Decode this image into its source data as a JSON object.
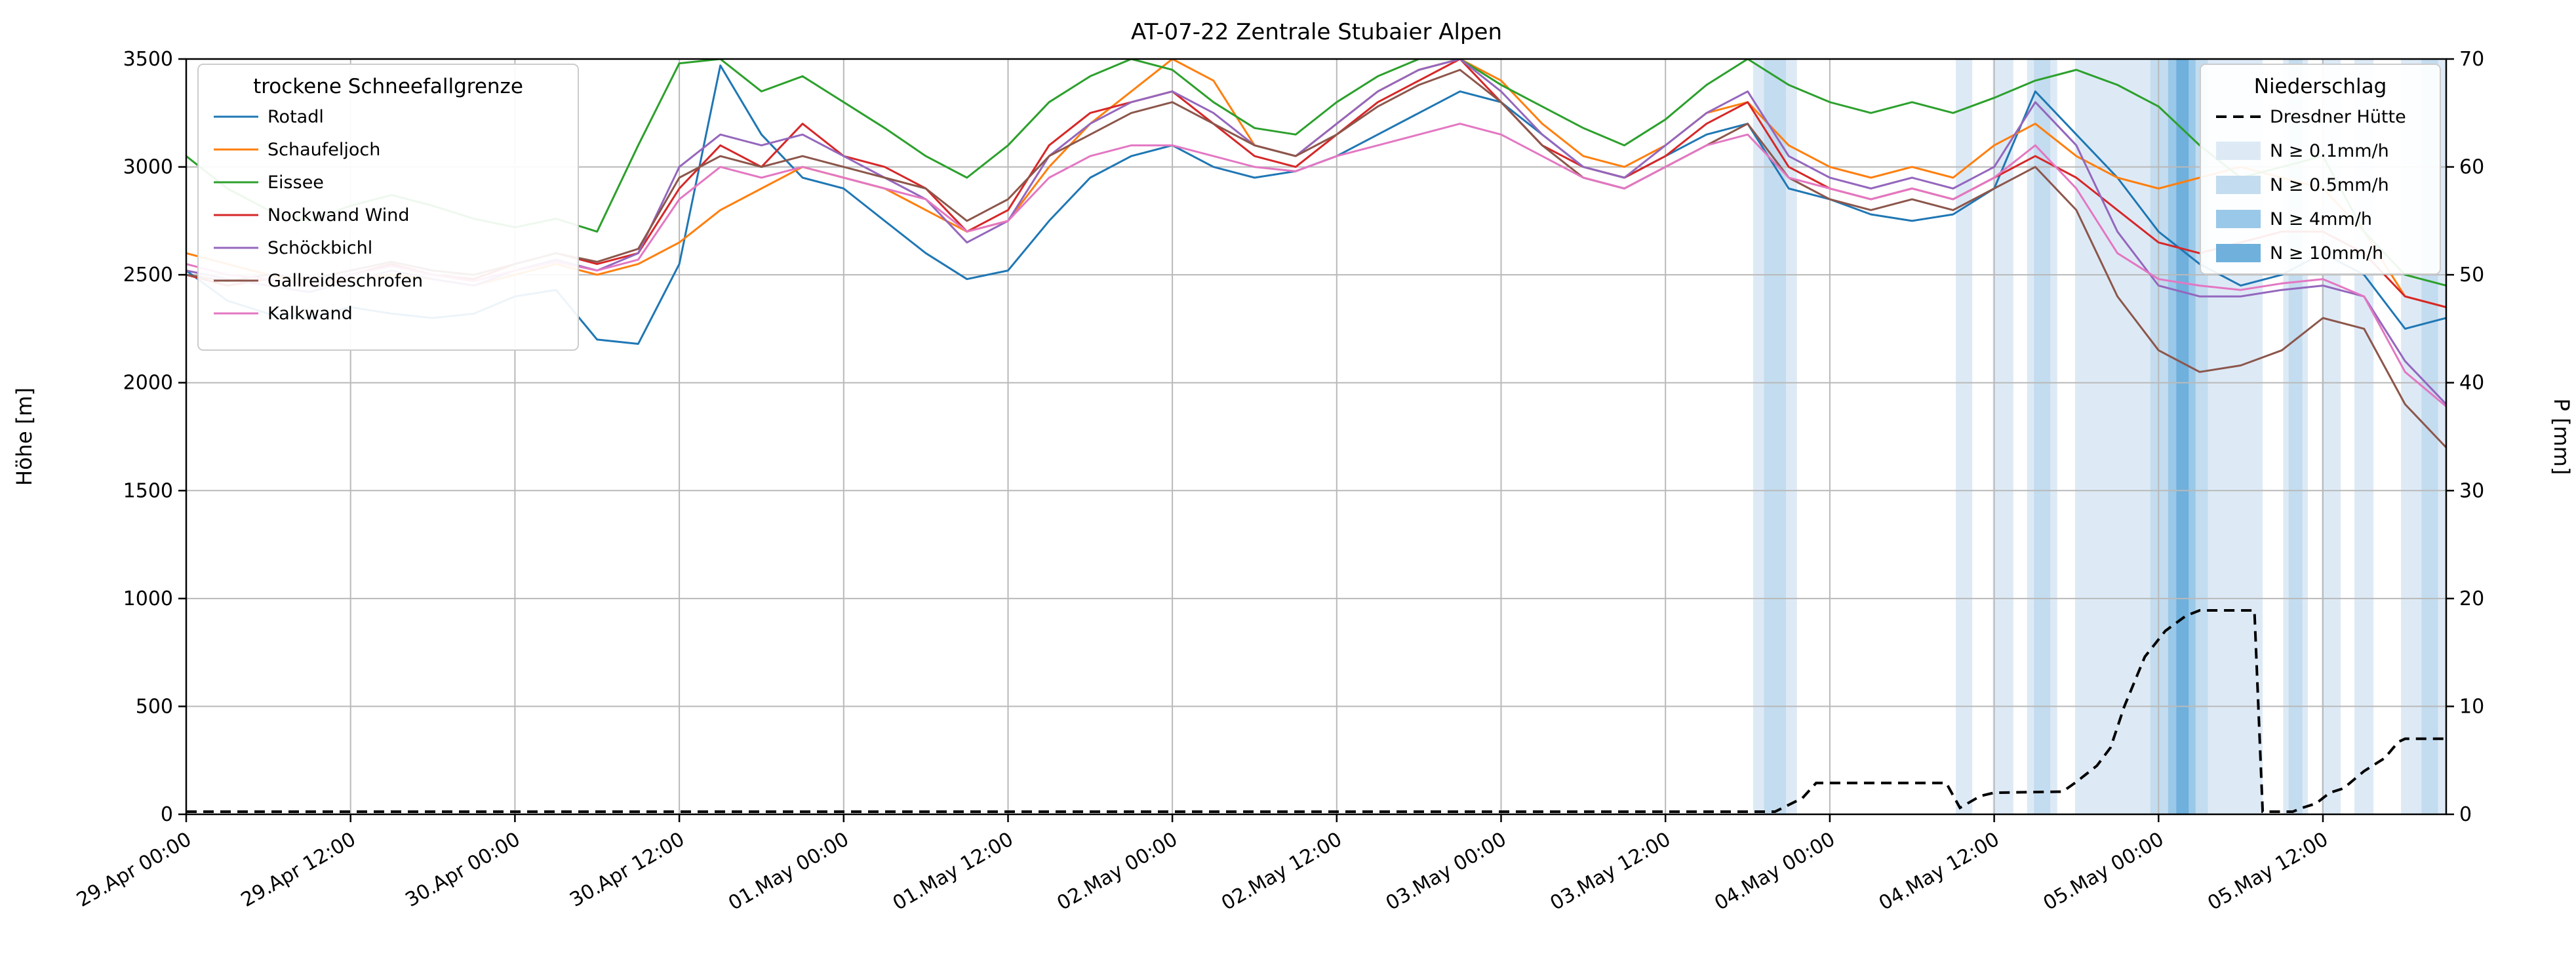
{
  "chart_data": {
    "type": "line",
    "title": "AT-07-22 Zentrale Stubaier Alpen",
    "ylabel_left": "Höhe [m]",
    "ylabel_right": "P [mm]",
    "ylim_left": [
      0,
      3500
    ],
    "ylim_right": [
      0,
      70
    ],
    "xlim": [
      0,
      165
    ],
    "x_unit": "hours since 29.Apr 00:00",
    "grid": true,
    "x_ticks": [
      {
        "t": 0,
        "label": "29.Apr 00:00"
      },
      {
        "t": 12,
        "label": "29.Apr 12:00"
      },
      {
        "t": 24,
        "label": "30.Apr 00:00"
      },
      {
        "t": 36,
        "label": "30.Apr 12:00"
      },
      {
        "t": 48,
        "label": "01.May 00:00"
      },
      {
        "t": 60,
        "label": "01.May 12:00"
      },
      {
        "t": 72,
        "label": "02.May 00:00"
      },
      {
        "t": 84,
        "label": "02.May 12:00"
      },
      {
        "t": 96,
        "label": "03.May 00:00"
      },
      {
        "t": 108,
        "label": "03.May 12:00"
      },
      {
        "t": 120,
        "label": "04.May 00:00"
      },
      {
        "t": 132,
        "label": "04.May 12:00"
      },
      {
        "t": 144,
        "label": "05.May 00:00"
      },
      {
        "t": 156,
        "label": "05.May 12:00"
      }
    ],
    "y_ticks_left": [
      0,
      500,
      1000,
      1500,
      2000,
      2500,
      3000,
      3500
    ],
    "y_ticks_right": [
      0,
      10,
      20,
      30,
      40,
      50,
      60,
      70
    ],
    "x_hours": [
      0,
      3,
      6,
      9,
      12,
      15,
      18,
      21,
      24,
      27,
      30,
      33,
      36,
      39,
      42,
      45,
      48,
      51,
      54,
      57,
      60,
      63,
      66,
      69,
      72,
      75,
      78,
      81,
      84,
      87,
      90,
      93,
      96,
      99,
      102,
      105,
      108,
      111,
      114,
      117,
      120,
      123,
      126,
      129,
      132,
      135,
      138,
      141,
      144,
      147,
      150,
      153,
      156,
      159,
      162,
      165
    ],
    "series": [
      {
        "name": "Rotadl",
        "color": "#1f77b4",
        "values": [
          2520,
          2380,
          2320,
          2300,
          2350,
          2320,
          2300,
          2320,
          2400,
          2430,
          2200,
          2180,
          2550,
          3470,
          3150,
          2950,
          2900,
          2750,
          2600,
          2480,
          2520,
          2750,
          2950,
          3050,
          3100,
          3000,
          2950,
          2980,
          3050,
          3150,
          3250,
          3350,
          3300,
          3150,
          3000,
          2950,
          3050,
          3150,
          3200,
          2900,
          2850,
          2780,
          2750,
          2780,
          2900,
          3350,
          3150,
          2950,
          2700,
          2550,
          2450,
          2500,
          2600,
          2500,
          2250,
          2300
        ]
      },
      {
        "name": "Schaufeljoch",
        "color": "#ff7f0e",
        "values": [
          2600,
          2550,
          2500,
          2450,
          2480,
          2500,
          2480,
          2450,
          2500,
          2550,
          2500,
          2550,
          2650,
          2800,
          2900,
          3000,
          2950,
          2900,
          2800,
          2700,
          2750,
          3000,
          3200,
          3350,
          3500,
          3400,
          3100,
          3050,
          3200,
          3350,
          3450,
          3500,
          3400,
          3200,
          3050,
          3000,
          3100,
          3250,
          3300,
          3100,
          3000,
          2950,
          3000,
          2950,
          3100,
          3200,
          3050,
          2950,
          2900,
          2950,
          3000,
          2950,
          2900,
          2700,
          2400,
          2350
        ]
      },
      {
        "name": "Eissee",
        "color": "#2ca02c",
        "values": [
          3050,
          2900,
          2800,
          2750,
          2820,
          2870,
          2820,
          2760,
          2720,
          2760,
          2700,
          3100,
          3480,
          3500,
          3350,
          3420,
          3300,
          3180,
          3050,
          2950,
          3100,
          3300,
          3420,
          3500,
          3450,
          3300,
          3180,
          3150,
          3300,
          3420,
          3500,
          3500,
          3380,
          3280,
          3180,
          3100,
          3220,
          3380,
          3500,
          3380,
          3300,
          3250,
          3300,
          3250,
          3320,
          3400,
          3450,
          3380,
          3280,
          3100,
          2950,
          3000,
          3050,
          2700,
          2500,
          2450
        ]
      },
      {
        "name": "Nockwand Wind",
        "color": "#d62728",
        "values": [
          2500,
          2450,
          2480,
          2450,
          2500,
          2550,
          2500,
          2480,
          2550,
          2600,
          2550,
          2600,
          2900,
          3100,
          3000,
          3200,
          3050,
          3000,
          2900,
          2700,
          2800,
          3100,
          3250,
          3300,
          3350,
          3200,
          3050,
          3000,
          3150,
          3300,
          3400,
          3500,
          3300,
          3100,
          3000,
          2950,
          3050,
          3200,
          3300,
          3000,
          2900,
          2850,
          2900,
          2850,
          2950,
          3050,
          2950,
          2800,
          2650,
          2600,
          2650,
          2700,
          2700,
          2600,
          2400,
          2350
        ]
      },
      {
        "name": "Schöckbichl",
        "color": "#9467bd",
        "values": [
          2520,
          2480,
          2450,
          2420,
          2470,
          2520,
          2480,
          2450,
          2520,
          2570,
          2520,
          2600,
          3000,
          3150,
          3100,
          3150,
          3050,
          2950,
          2850,
          2650,
          2750,
          3050,
          3200,
          3300,
          3350,
          3250,
          3100,
          3050,
          3200,
          3350,
          3450,
          3500,
          3350,
          3150,
          3000,
          2950,
          3100,
          3250,
          3350,
          3050,
          2950,
          2900,
          2950,
          2900,
          3000,
          3300,
          3100,
          2700,
          2450,
          2400,
          2400,
          2430,
          2450,
          2400,
          2100,
          1900
        ]
      },
      {
        "name": "Gallreideschrofen",
        "color": "#8c564b",
        "values": [
          2500,
          2470,
          2500,
          2480,
          2520,
          2560,
          2520,
          2500,
          2550,
          2600,
          2560,
          2620,
          2950,
          3050,
          3000,
          3050,
          3000,
          2950,
          2900,
          2750,
          2850,
          3050,
          3150,
          3250,
          3300,
          3200,
          3100,
          3050,
          3150,
          3280,
          3380,
          3450,
          3300,
          3100,
          2950,
          2900,
          3000,
          3100,
          3200,
          2950,
          2850,
          2800,
          2850,
          2800,
          2900,
          3000,
          2800,
          2400,
          2150,
          2050,
          2080,
          2150,
          2300,
          2250,
          1900,
          1700
        ]
      },
      {
        "name": "Kalkwand",
        "color": "#e377c2",
        "values": [
          2550,
          2500,
          2480,
          2450,
          2500,
          2540,
          2500,
          2470,
          2520,
          2560,
          2520,
          2570,
          2850,
          3000,
          2950,
          3000,
          2950,
          2900,
          2850,
          2700,
          2750,
          2950,
          3050,
          3100,
          3100,
          3050,
          3000,
          2980,
          3050,
          3100,
          3150,
          3200,
          3150,
          3050,
          2950,
          2900,
          3000,
          3100,
          3150,
          2950,
          2900,
          2850,
          2900,
          2850,
          2950,
          3100,
          2900,
          2600,
          2480,
          2450,
          2430,
          2460,
          2480,
          2400,
          2050,
          1890
        ]
      }
    ],
    "precip_line": {
      "name": "Dresdner Hütte",
      "color": "#000000",
      "style": "dashed",
      "axis": "right",
      "points": [
        [
          0,
          0
        ],
        [
          116,
          0
        ],
        [
          118,
          1.5
        ],
        [
          119,
          2.9
        ],
        [
          128.5,
          2.9
        ],
        [
          129.5,
          0.6
        ],
        [
          131,
          1.7
        ],
        [
          132,
          2.0
        ],
        [
          137,
          2.1
        ],
        [
          138,
          3.0
        ],
        [
          139.5,
          4.5
        ],
        [
          140.5,
          6.2
        ],
        [
          141.5,
          10.0
        ],
        [
          143,
          14.6
        ],
        [
          144.5,
          17.0
        ],
        [
          146,
          18.4
        ],
        [
          147,
          18.9
        ],
        [
          151,
          18.9
        ],
        [
          151.6,
          0
        ],
        [
          153.8,
          0
        ],
        [
          154.5,
          0.6
        ],
        [
          155.5,
          1.0
        ],
        [
          156.5,
          2.0
        ],
        [
          157.5,
          2.4
        ],
        [
          159,
          4.0
        ],
        [
          160.5,
          5.2
        ],
        [
          161.5,
          6.7
        ],
        [
          162,
          7.0
        ],
        [
          165,
          7.0
        ]
      ]
    },
    "precip_bands": [
      {
        "start": 114.4,
        "end": 117.6,
        "level": "0.1"
      },
      {
        "start": 115.2,
        "end": 116.8,
        "level": "0.5"
      },
      {
        "start": 129.2,
        "end": 130.4,
        "level": "0.1"
      },
      {
        "start": 131.9,
        "end": 133.4,
        "level": "0.1"
      },
      {
        "start": 134.4,
        "end": 136.6,
        "level": "0.1"
      },
      {
        "start": 134.9,
        "end": 136.1,
        "level": "0.5"
      },
      {
        "start": 137.9,
        "end": 151.6,
        "level": "0.1"
      },
      {
        "start": 143.4,
        "end": 147.6,
        "level": "0.5"
      },
      {
        "start": 144.7,
        "end": 146.7,
        "level": "4"
      },
      {
        "start": 145.3,
        "end": 146.2,
        "level": "10"
      },
      {
        "start": 153.1,
        "end": 154.9,
        "level": "0.1"
      },
      {
        "start": 153.5,
        "end": 154.5,
        "level": "0.5"
      },
      {
        "start": 155.9,
        "end": 157.3,
        "level": "0.1"
      },
      {
        "start": 158.3,
        "end": 159.7,
        "level": "0.1"
      },
      {
        "start": 161.7,
        "end": 165.0,
        "level": "0.1"
      },
      {
        "start": 163.2,
        "end": 164.4,
        "level": "0.5"
      }
    ],
    "band_colors": {
      "0.1": "#ddeaf6",
      "0.5": "#c3dcef",
      "4": "#9ac8e8",
      "10": "#6fb0dc"
    },
    "legend_snowline": {
      "title": "trockene Schneefallgrenze",
      "position": "upper left"
    },
    "legend_precip": {
      "title": "Niederschlag",
      "position": "upper right",
      "line_label": "Dresdner Hütte",
      "bands": [
        {
          "label": "N ≥ 0.1mm/h",
          "level": "0.1"
        },
        {
          "label": "N ≥ 0.5mm/h",
          "level": "0.5"
        },
        {
          "label": "N ≥ 4mm/h",
          "level": "4"
        },
        {
          "label": "N ≥ 10mm/h",
          "level": "10"
        }
      ]
    }
  }
}
